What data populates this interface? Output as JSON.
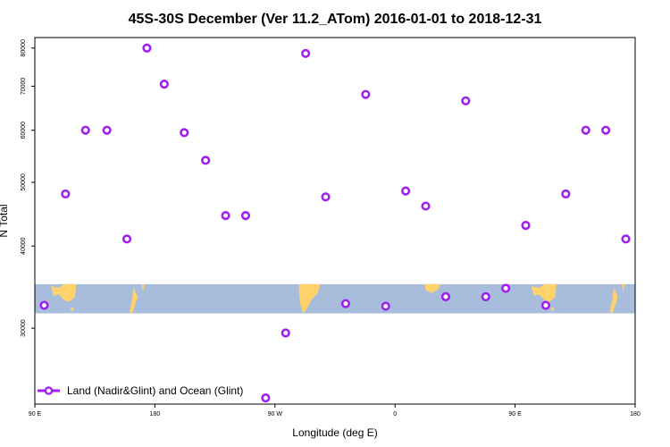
{
  "chart_data": {
    "type": "scatter",
    "title": "45S-30S December (Ver 11.2_ATom)   2016-01-01 to 2018-12-31",
    "xlabel": "Longitude (deg E)",
    "ylabel": "N Total",
    "x_ticks": [
      {
        "value": 90,
        "label": "90 E"
      },
      {
        "value": 180,
        "label": "180"
      },
      {
        "value": 270,
        "label": "90 W"
      },
      {
        "value": 360,
        "label": "0"
      },
      {
        "value": 450,
        "label": "90 E"
      },
      {
        "value": 540,
        "label": "180"
      }
    ],
    "xlim": [
      90,
      540
    ],
    "y_ticks": [
      30000,
      40000,
      50000,
      60000,
      70000,
      80000
    ],
    "ylim": [
      23000,
      83000
    ],
    "y_scale": "log",
    "grid": false,
    "legend_position": "bottom-left",
    "series": [
      {
        "name": "Land (Nadir&Glint) and Ocean (Glint)",
        "color": "#a020f0",
        "marker": "open-circle",
        "x": [
          97,
          113,
          128,
          144,
          159,
          174,
          187,
          202,
          218,
          233,
          248,
          263,
          278,
          293,
          308,
          323,
          338,
          353,
          368,
          383,
          398,
          413,
          428,
          443,
          458,
          473,
          488,
          503,
          518,
          533
        ],
        "y": [
          32500,
          48000,
          60000,
          60000,
          41000,
          80000,
          70500,
          59500,
          54000,
          44500,
          44500,
          23500,
          29500,
          78500,
          47500,
          32700,
          68000,
          32400,
          48500,
          46000,
          33500,
          66500,
          33500,
          34500,
          43000,
          32500,
          48000,
          60000,
          60000,
          41000
        ]
      }
    ],
    "map_strip": {
      "ocean_color": "#a8bcdb",
      "land_color": "#ffd26a",
      "y_top_value": 35000,
      "y_bottom_value": 31600
    }
  }
}
